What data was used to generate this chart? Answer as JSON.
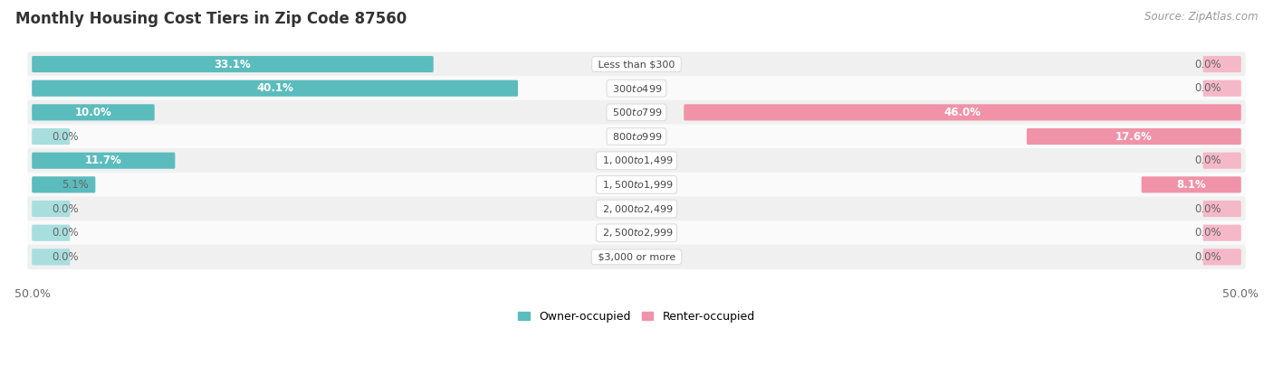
{
  "title": "Monthly Housing Cost Tiers in Zip Code 87560",
  "source": "Source: ZipAtlas.com",
  "categories": [
    "Less than $300",
    "$300 to $499",
    "$500 to $799",
    "$800 to $999",
    "$1,000 to $1,499",
    "$1,500 to $1,999",
    "$2,000 to $2,499",
    "$2,500 to $2,999",
    "$3,000 or more"
  ],
  "owner_values": [
    33.1,
    40.1,
    10.0,
    0.0,
    11.7,
    5.1,
    0.0,
    0.0,
    0.0
  ],
  "renter_values": [
    0.0,
    0.0,
    46.0,
    17.6,
    0.0,
    8.1,
    0.0,
    0.0,
    0.0
  ],
  "owner_color": "#5bbcbd",
  "renter_color": "#f093a8",
  "owner_color_light": "#a8dede",
  "renter_color_light": "#f5b8c8",
  "label_color_white": "#ffffff",
  "label_color_dark": "#666666",
  "row_bg_odd": "#f0f0f0",
  "row_bg_even": "#fafafa",
  "max_value": 50.0,
  "title_fontsize": 12,
  "source_fontsize": 8.5,
  "bar_label_fontsize": 8.5,
  "category_fontsize": 8,
  "legend_fontsize": 9,
  "zero_stub": 3.0
}
